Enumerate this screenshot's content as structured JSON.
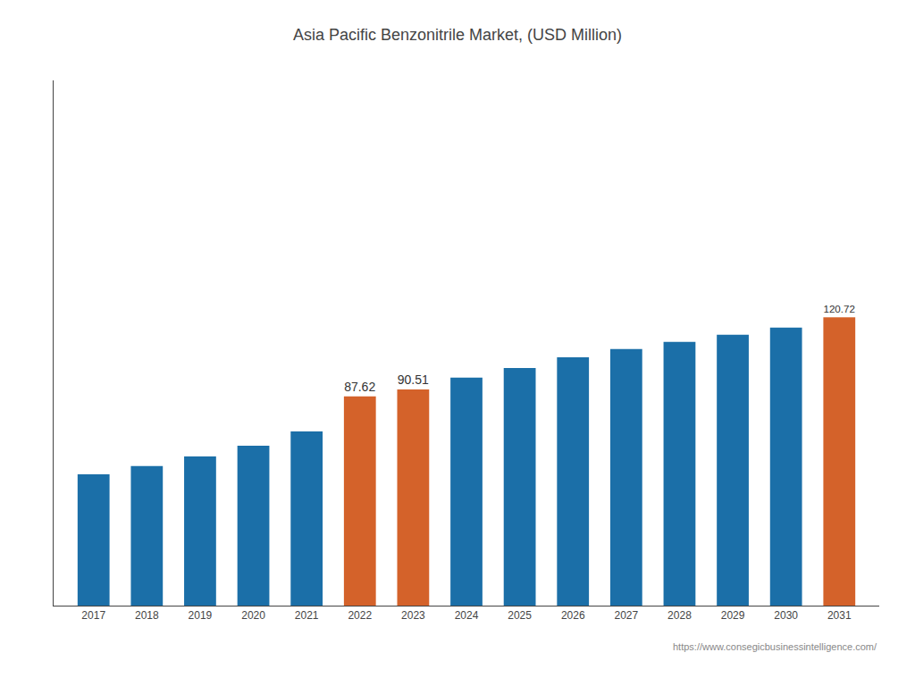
{
  "chart_data": {
    "type": "bar",
    "title": "Asia Pacific Benzonitrile Market, (USD Million)",
    "x": [
      2017,
      2018,
      2019,
      2020,
      2021,
      2022,
      2023,
      2024,
      2025,
      2026,
      2027,
      2028,
      2029,
      2030,
      2031
    ],
    "values": [
      55.0,
      58.5,
      62.5,
      67.0,
      73.0,
      87.62,
      90.51,
      95.5,
      99.5,
      104.0,
      107.5,
      110.5,
      113.5,
      116.5,
      120.72
    ],
    "value_labels": [
      null,
      null,
      null,
      null,
      null,
      "87.62",
      "90.51",
      null,
      null,
      null,
      null,
      null,
      null,
      null,
      "120.72"
    ],
    "colors": [
      "#1b6fa8",
      "#1b6fa8",
      "#1b6fa8",
      "#1b6fa8",
      "#1b6fa8",
      "#d4622a",
      "#d4622a",
      "#1b6fa8",
      "#1b6fa8",
      "#1b6fa8",
      "#1b6fa8",
      "#1b6fa8",
      "#1b6fa8",
      "#1b6fa8",
      "#d4622a"
    ],
    "xlim": [
      2016.25,
      2031.75
    ],
    "xticks": [
      2017,
      2018,
      2019,
      2020,
      2021,
      2022,
      2023,
      2024,
      2025,
      2026,
      2027,
      2028,
      2029,
      2030,
      2031
    ],
    "ylim": [
      0,
      220
    ],
    "grid": false,
    "tick_labels": "x",
    "annotations": [
      "https://www.consegicbusinessintelligence.com/"
    ]
  }
}
